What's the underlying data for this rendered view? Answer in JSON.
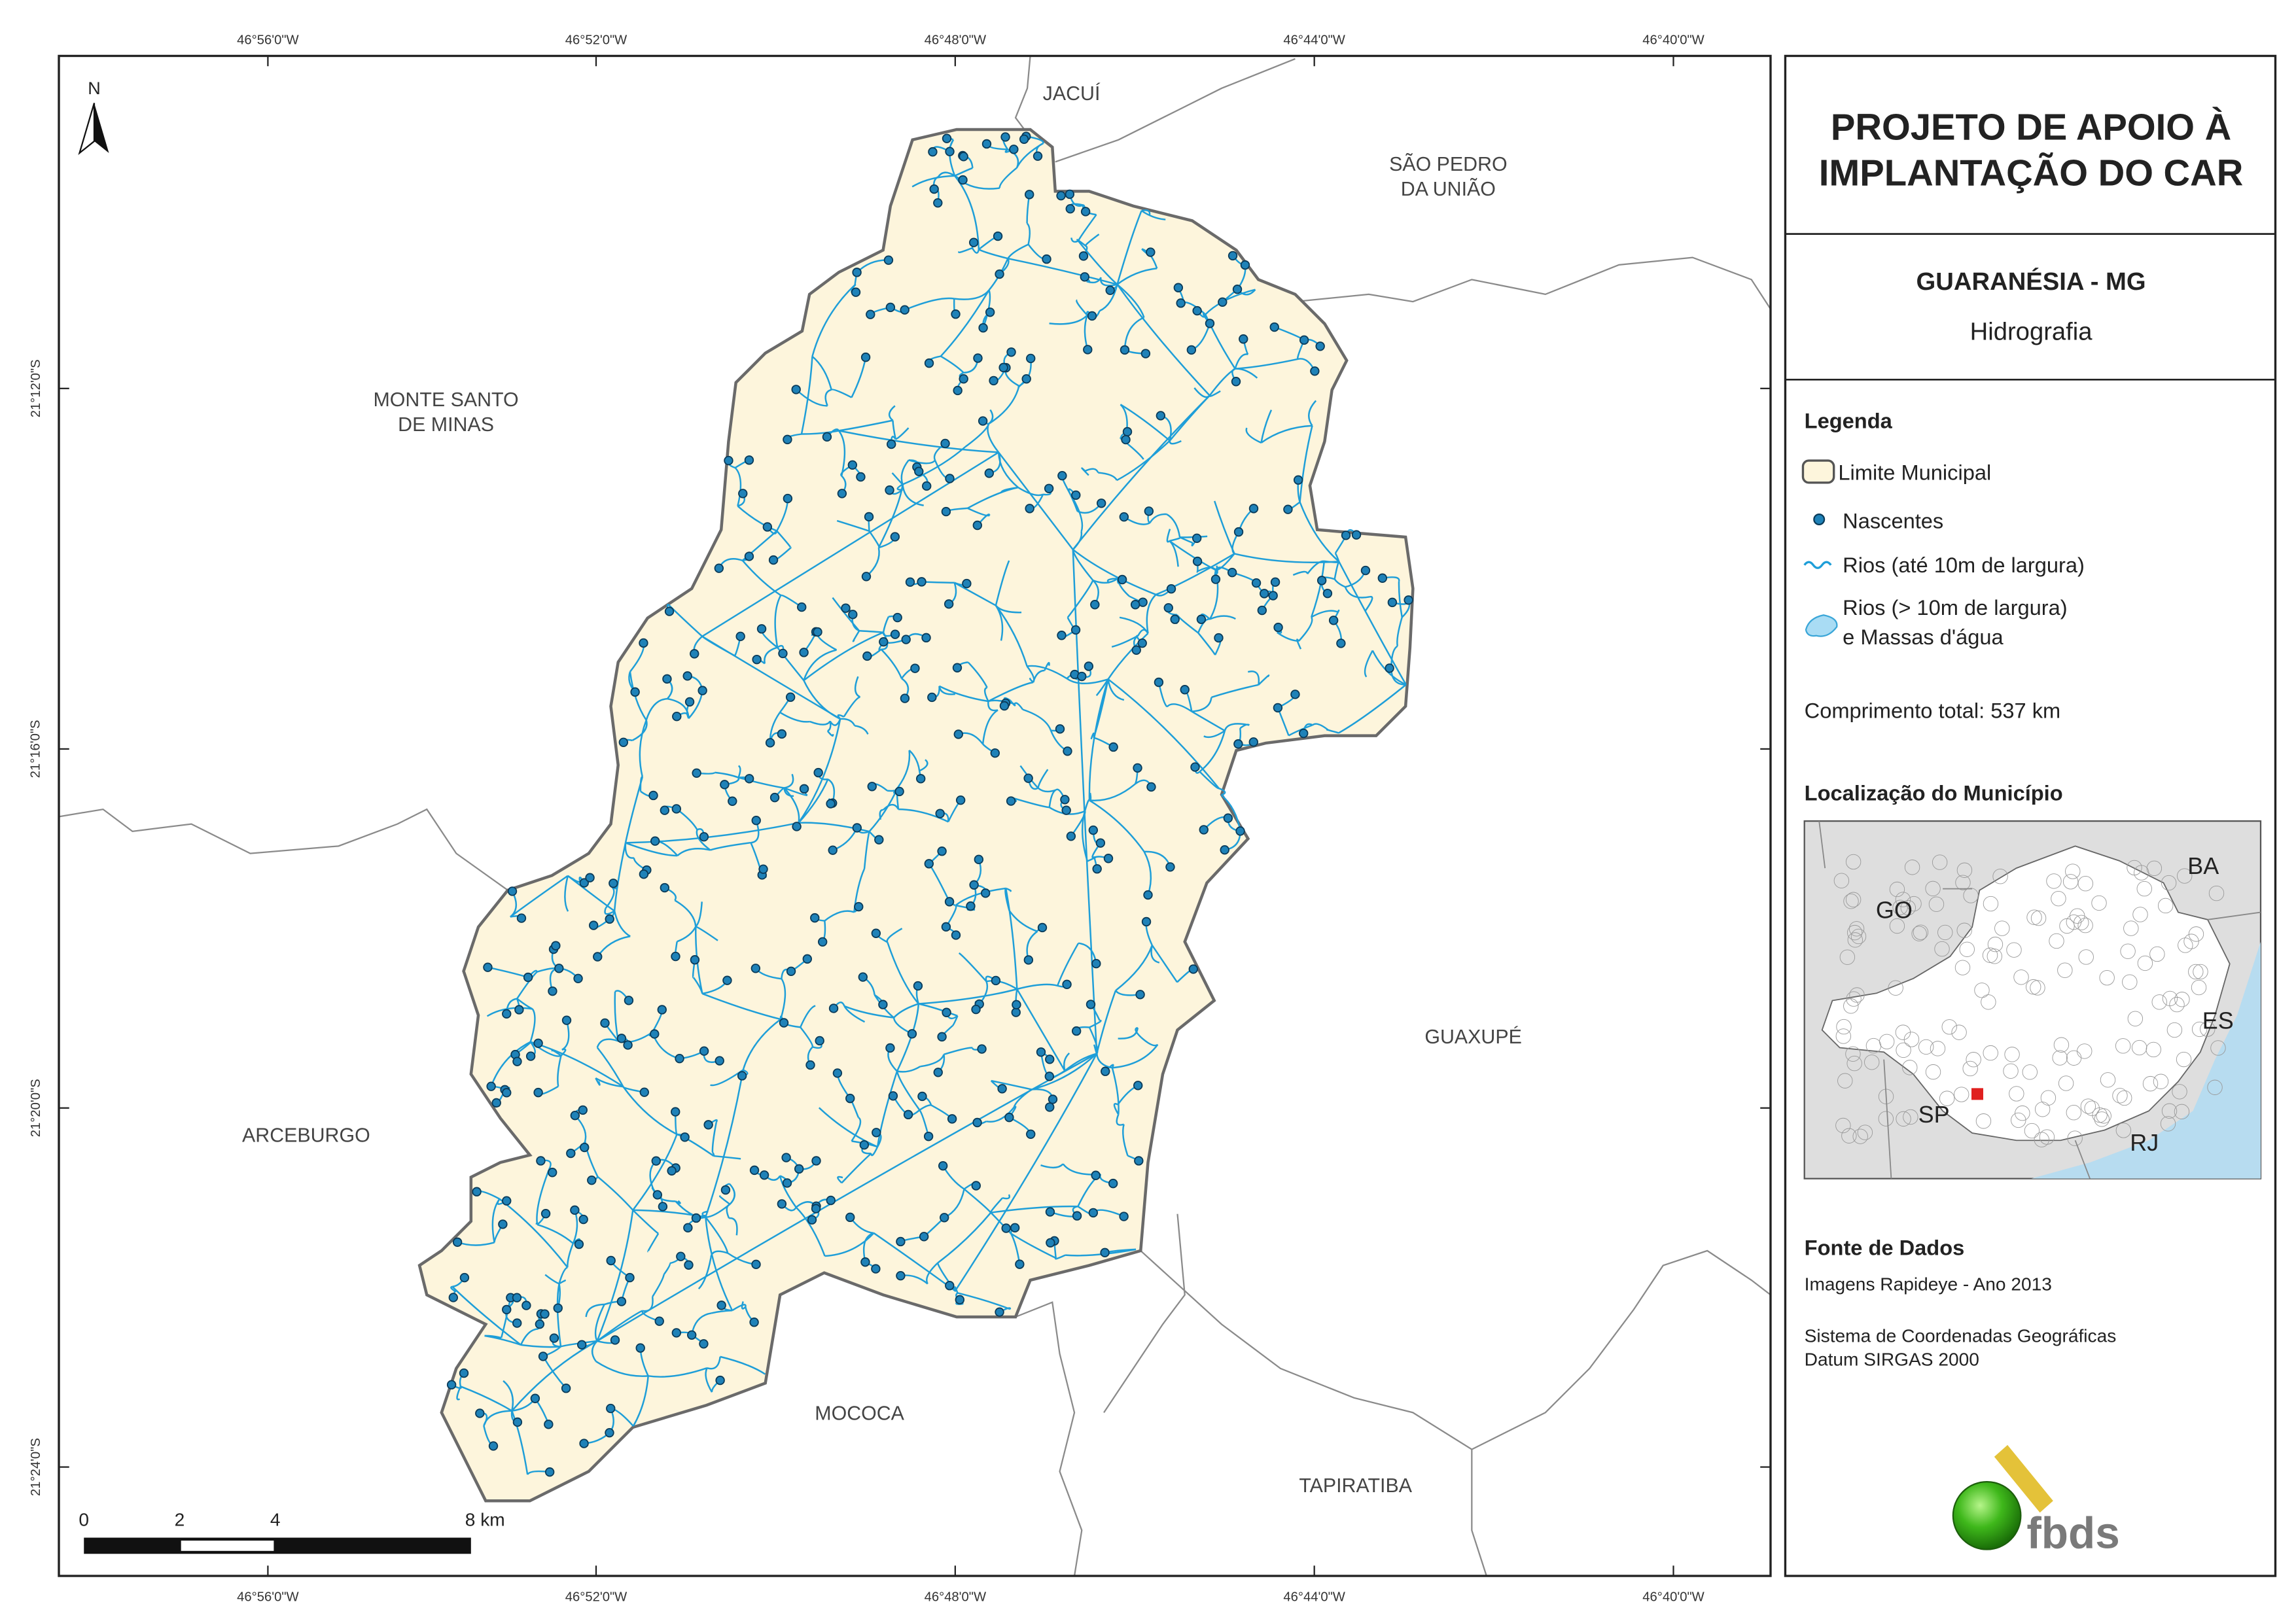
{
  "map": {
    "north": "N",
    "lon_labels": [
      "46°56'0\"W",
      "46°52'0\"W",
      "46°48'0\"W",
      "46°44'0\"W",
      "46°40'0\"W"
    ],
    "lat_labels": [
      "21°12'0\"S",
      "21°16'0\"S",
      "21°20'0\"S",
      "21°24'0\"S"
    ],
    "places": [
      {
        "lines": [
          "JACUÍ"
        ]
      },
      {
        "lines": [
          "SÃO PEDRO",
          "DA UNIÃO"
        ]
      },
      {
        "lines": [
          "MONTE SANTO",
          "DE MINAS"
        ]
      },
      {
        "lines": [
          "GUAXUPÉ"
        ]
      },
      {
        "lines": [
          "ARCEBURGO"
        ]
      },
      {
        "lines": [
          "MOCOCA"
        ]
      },
      {
        "lines": [
          "TAPIRATIBA"
        ]
      }
    ],
    "scale_labels": [
      "0",
      "2",
      "4",
      "8 km"
    ]
  },
  "header": {
    "title_lines": [
      "PROJETO DE APOIO À",
      "IMPLANTAÇÃO DO CAR"
    ],
    "municipality": "GUARANÉSIA - MG",
    "theme": "Hidrografia"
  },
  "legend": {
    "title": "Legenda",
    "items": [
      {
        "lines": [
          "Limite Municipal"
        ]
      },
      {
        "lines": [
          "Nascentes"
        ]
      },
      {
        "lines": [
          "Rios (até 10m de largura)"
        ]
      },
      {
        "lines": [
          "Rios (> 10m de largura)",
          "e Massas d'água"
        ]
      }
    ],
    "total_length": "Comprimento total:  537 km"
  },
  "location": {
    "title": "Localização do Município",
    "states": [
      "GO",
      "BA",
      "ES",
      "SP",
      "RJ"
    ]
  },
  "sources": {
    "title": "Fonte de Dados",
    "lines": [
      "Imagens Rapideye - Ano 2013",
      "Sistema de Coordenadas Geográficas",
      "Datum SIRGAS 2000"
    ]
  },
  "logo": "fbds"
}
